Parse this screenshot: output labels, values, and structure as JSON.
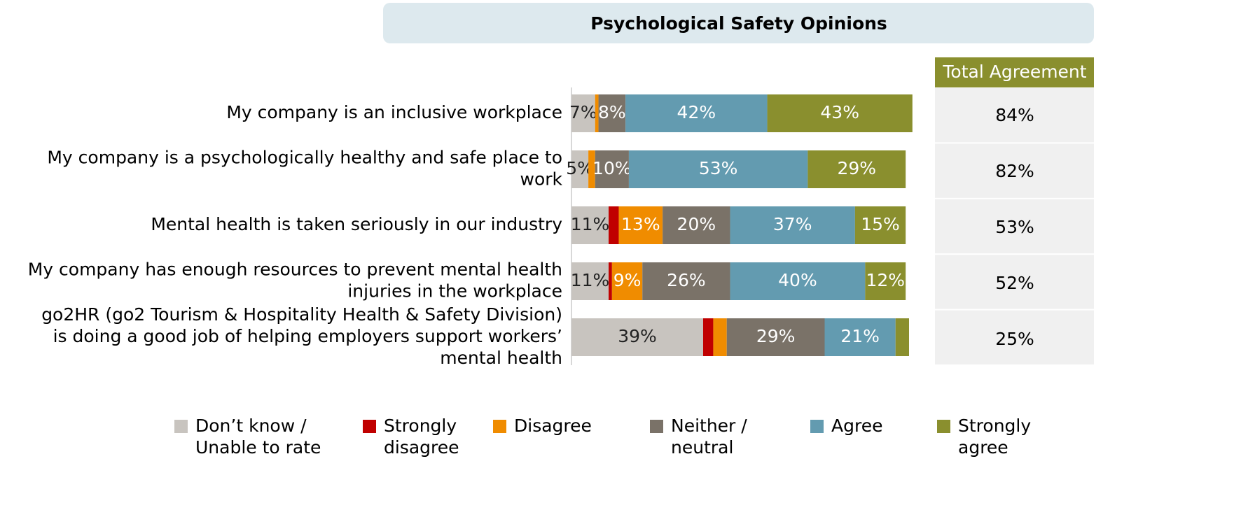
{
  "chart_data": {
    "type": "stacked_barh",
    "title": "Psychological Safety Opinions",
    "categories": [
      "My company is an inclusive workplace",
      "My company is a psychologically healthy and safe place to\nwork",
      "Mental health is taken seriously in our industry",
      "My company has enough resources to prevent mental health\ninjuries in the workplace",
      "go2HR (go2 Tourism & Hospitality Health & Safety Division)\nis doing a good job of helping employers support workers’\nmental health"
    ],
    "xlim": [
      0,
      100
    ],
    "series": [
      {
        "name": "Don’t know /\nUnable to rate",
        "color": "#c8c4bf",
        "values": [
          7,
          5,
          11,
          11,
          39
        ],
        "value_labels": [
          "7%",
          "5%",
          "11%",
          "11%",
          "39%"
        ]
      },
      {
        "name": "Strongly\ndisagree",
        "color": "#c00000",
        "values": [
          0,
          0,
          3,
          1,
          3
        ],
        "value_labels": [
          null,
          null,
          null,
          null,
          null
        ]
      },
      {
        "name": "Disagree",
        "color": "#f08c00",
        "values": [
          1,
          2,
          13,
          9,
          4
        ],
        "value_labels": [
          null,
          null,
          "13%",
          "9%",
          null
        ]
      },
      {
        "name": "Neither /\nneutral",
        "color": "#7a7268",
        "values": [
          8,
          10,
          20,
          26,
          29
        ],
        "value_labels": [
          "8%",
          "10%",
          "20%",
          "26%",
          "29%"
        ]
      },
      {
        "name": "Agree",
        "color": "#639bb0",
        "values": [
          42,
          53,
          37,
          40,
          21
        ],
        "value_labels": [
          "42%",
          "53%",
          "37%",
          "40%",
          "21%"
        ]
      },
      {
        "name": "Strongly\nagree",
        "color": "#8a8f2e",
        "values": [
          43,
          29,
          15,
          12,
          4
        ],
        "value_labels": [
          "43%",
          "29%",
          "15%",
          "12%",
          null
        ]
      }
    ],
    "total_agreement": {
      "title": "Total Agreement",
      "labels": [
        "84%",
        "82%",
        "53%",
        "52%",
        "25%"
      ]
    }
  }
}
